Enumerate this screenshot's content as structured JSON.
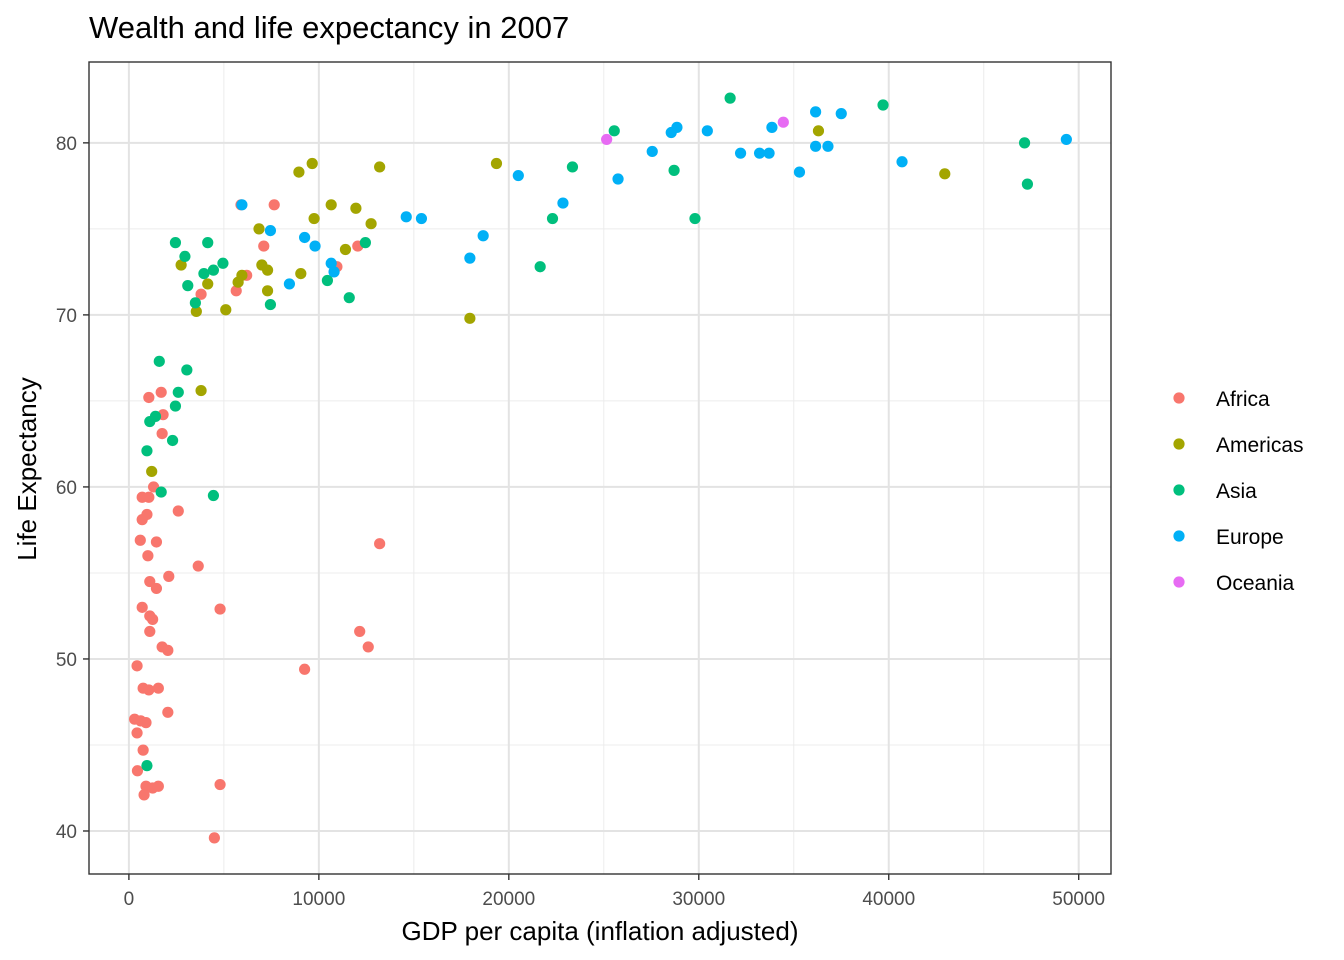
{
  "chart_data": {
    "type": "scatter",
    "title": "Wealth and life expectancy in 2007",
    "xlabel": "GDP per capita (inflation adjusted)",
    "ylabel": "Life Expectancy",
    "xlim": [
      -2100,
      51700
    ],
    "ylim": [
      37.5,
      84.7
    ],
    "x_ticks": [
      0,
      10000,
      20000,
      30000,
      40000,
      50000
    ],
    "x_tick_labels": [
      "0",
      "10000",
      "20000",
      "30000",
      "40000",
      "50000"
    ],
    "y_ticks": [
      40,
      50,
      60,
      70,
      80
    ],
    "y_tick_labels": [
      "40",
      "50",
      "60",
      "70",
      "80"
    ],
    "grid": true,
    "legend_position": "right",
    "series": [
      {
        "name": "Africa",
        "color": "#F8766D",
        "points": [
          [
            5900,
            76.4
          ],
          [
            7650,
            76.4
          ],
          [
            7100,
            74.0
          ],
          [
            12050,
            74.0
          ],
          [
            10950,
            72.8
          ],
          [
            6200,
            72.3
          ],
          [
            5650,
            71.4
          ],
          [
            3800,
            71.2
          ],
          [
            1700,
            65.5
          ],
          [
            1050,
            65.2
          ],
          [
            1800,
            64.2
          ],
          [
            1750,
            63.1
          ],
          [
            1300,
            60.0
          ],
          [
            700,
            59.4
          ],
          [
            1050,
            59.4
          ],
          [
            950,
            58.4
          ],
          [
            2600,
            58.6
          ],
          [
            700,
            58.1
          ],
          [
            600,
            56.9
          ],
          [
            1450,
            56.8
          ],
          [
            1000,
            56.0
          ],
          [
            13200,
            56.7
          ],
          [
            3650,
            55.4
          ],
          [
            2100,
            54.8
          ],
          [
            1100,
            54.5
          ],
          [
            1450,
            54.1
          ],
          [
            700,
            53.0
          ],
          [
            4800,
            52.9
          ],
          [
            1100,
            52.5
          ],
          [
            1250,
            52.3
          ],
          [
            1100,
            51.6
          ],
          [
            12150,
            51.6
          ],
          [
            12600,
            50.7
          ],
          [
            1750,
            50.7
          ],
          [
            2050,
            50.5
          ],
          [
            9250,
            49.4
          ],
          [
            430,
            49.6
          ],
          [
            750,
            48.3
          ],
          [
            1050,
            48.2
          ],
          [
            1550,
            48.3
          ],
          [
            2050,
            46.9
          ],
          [
            300,
            46.5
          ],
          [
            620,
            46.4
          ],
          [
            900,
            46.3
          ],
          [
            430,
            45.7
          ],
          [
            750,
            44.7
          ],
          [
            450,
            43.5
          ],
          [
            900,
            42.6
          ],
          [
            1250,
            42.5
          ],
          [
            1550,
            42.6
          ],
          [
            800,
            42.1
          ],
          [
            4800,
            42.7
          ],
          [
            4500,
            39.6
          ]
        ]
      },
      {
        "name": "Americas",
        "color": "#A3A500",
        "points": [
          [
            9650,
            78.8
          ],
          [
            8950,
            78.3
          ],
          [
            13200,
            78.6
          ],
          [
            19350,
            78.8
          ],
          [
            10650,
            76.4
          ],
          [
            11950,
            76.2
          ],
          [
            9750,
            75.6
          ],
          [
            12750,
            75.3
          ],
          [
            6850,
            75.0
          ],
          [
            11400,
            73.8
          ],
          [
            2750,
            72.9
          ],
          [
            7000,
            72.9
          ],
          [
            7300,
            72.6
          ],
          [
            5950,
            72.3
          ],
          [
            5750,
            71.9
          ],
          [
            4150,
            71.8
          ],
          [
            7300,
            71.4
          ],
          [
            9050,
            72.4
          ],
          [
            3550,
            70.2
          ],
          [
            5100,
            70.3
          ],
          [
            17950,
            69.8
          ],
          [
            3800,
            65.6
          ],
          [
            1200,
            60.9
          ],
          [
            36300,
            80.7
          ],
          [
            42950,
            78.2
          ]
        ]
      },
      {
        "name": "Asia",
        "color": "#00BF7D",
        "points": [
          [
            31650,
            82.6
          ],
          [
            39700,
            82.2
          ],
          [
            25550,
            80.7
          ],
          [
            47150,
            80.0
          ],
          [
            28700,
            78.4
          ],
          [
            23350,
            78.6
          ],
          [
            47300,
            77.6
          ],
          [
            22300,
            75.6
          ],
          [
            29800,
            75.6
          ],
          [
            21650,
            72.8
          ],
          [
            2450,
            74.2
          ],
          [
            4150,
            74.2
          ],
          [
            2950,
            73.4
          ],
          [
            12450,
            74.2
          ],
          [
            4950,
            73.0
          ],
          [
            3950,
            72.4
          ],
          [
            4450,
            72.6
          ],
          [
            3100,
            71.7
          ],
          [
            10450,
            72.0
          ],
          [
            11600,
            71.0
          ],
          [
            3500,
            70.7
          ],
          [
            7450,
            70.6
          ],
          [
            1600,
            67.3
          ],
          [
            3050,
            66.8
          ],
          [
            2600,
            65.5
          ],
          [
            1400,
            64.1
          ],
          [
            2450,
            64.7
          ],
          [
            1100,
            63.8
          ],
          [
            2300,
            62.7
          ],
          [
            950,
            62.1
          ],
          [
            1700,
            59.7
          ],
          [
            4450,
            59.5
          ],
          [
            950,
            43.8
          ]
        ]
      },
      {
        "name": "Europe",
        "color": "#00B0F6",
        "points": [
          [
            36150,
            81.8
          ],
          [
            37500,
            81.7
          ],
          [
            28850,
            80.9
          ],
          [
            33850,
            80.9
          ],
          [
            28550,
            80.6
          ],
          [
            30450,
            80.7
          ],
          [
            49350,
            80.2
          ],
          [
            36150,
            79.8
          ],
          [
            36800,
            79.8
          ],
          [
            27550,
            79.5
          ],
          [
            32200,
            79.4
          ],
          [
            33200,
            79.4
          ],
          [
            33700,
            79.4
          ],
          [
            40700,
            78.9
          ],
          [
            25750,
            77.9
          ],
          [
            35300,
            78.3
          ],
          [
            20500,
            78.1
          ],
          [
            22850,
            76.5
          ],
          [
            14600,
            75.7
          ],
          [
            15400,
            75.6
          ],
          [
            5950,
            76.4
          ],
          [
            7450,
            74.9
          ],
          [
            9250,
            74.5
          ],
          [
            9800,
            74.0
          ],
          [
            18650,
            74.6
          ],
          [
            10650,
            73.0
          ],
          [
            10800,
            72.5
          ],
          [
            8450,
            71.8
          ],
          [
            17950,
            73.3
          ]
        ]
      },
      {
        "name": "Oceania",
        "color": "#E76BF3",
        "points": [
          [
            25150,
            80.2
          ],
          [
            34450,
            81.2
          ]
        ]
      }
    ]
  }
}
